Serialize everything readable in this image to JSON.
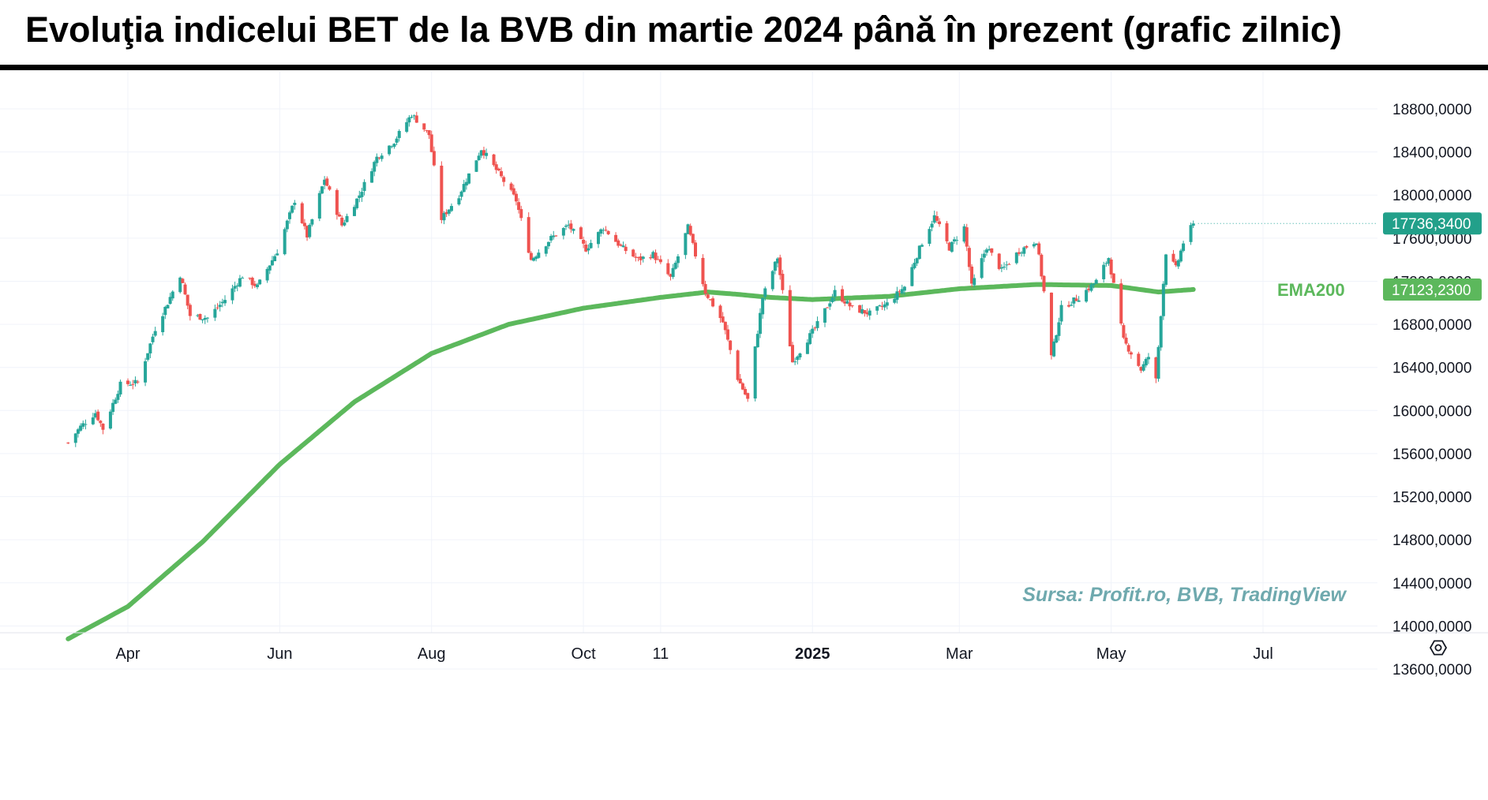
{
  "header": {
    "title": "Evoluţia indicelui BET de la BVB din martie 2024 până în prezent (grafic zilnic)"
  },
  "source": "Sursa: Profit.ro, BVB, TradingView",
  "settings_icon": "settings-gear-icon",
  "colors": {
    "up": "#26a69a",
    "down": "#ef5350",
    "ema": "#5cb85c",
    "grid": "#f0f3fa",
    "source": "#6fa9ae"
  },
  "chart_data": {
    "type": "candlestick",
    "x_axis": {
      "start": "2024-03-08",
      "end": "2025-07-10",
      "ticks": [
        {
          "label": "Apr",
          "date": "2024-04-01"
        },
        {
          "label": "Jun",
          "date": "2024-06-01"
        },
        {
          "label": "Aug",
          "date": "2024-08-01"
        },
        {
          "label": "Oct",
          "date": "2024-10-01"
        },
        {
          "label": "11",
          "date": "2024-11-01"
        },
        {
          "label": "2025",
          "date": "2025-01-01",
          "bold": true
        },
        {
          "label": "Mar",
          "date": "2025-03-01"
        },
        {
          "label": "May",
          "date": "2025-05-01"
        },
        {
          "label": "Jul",
          "date": "2025-07-01"
        }
      ]
    },
    "y_axis": {
      "range": [
        13400,
        19400
      ],
      "ticks": [
        "18800,0000",
        "18400,0000",
        "18000,0000",
        "17600,0000",
        "17200,0000",
        "16800,0000",
        "16400,0000",
        "16000,0000",
        "15600,0000",
        "15200,0000",
        "14800,0000",
        "14400,0000",
        "14000,0000",
        "13600,0000"
      ]
    },
    "last_price": {
      "value": 17736.34,
      "label": "17736,3400"
    },
    "ema": {
      "name": "EMA200",
      "value": 17123.23,
      "label": "17123,2300"
    },
    "price_anchors": [
      [
        "2024-03-08",
        15700
      ],
      [
        "2024-03-13",
        15850
      ],
      [
        "2024-03-19",
        15980
      ],
      [
        "2024-03-22",
        15830
      ],
      [
        "2024-03-29",
        16240
      ],
      [
        "2024-04-05",
        16260
      ],
      [
        "2024-04-12",
        16760
      ],
      [
        "2024-04-17",
        17000
      ],
      [
        "2024-04-22",
        17260
      ],
      [
        "2024-04-26",
        16880
      ],
      [
        "2024-05-03",
        16860
      ],
      [
        "2024-05-10",
        17030
      ],
      [
        "2024-05-17",
        17250
      ],
      [
        "2024-05-23",
        17150
      ],
      [
        "2024-05-31",
        17480
      ],
      [
        "2024-06-07",
        17950
      ],
      [
        "2024-06-12",
        17620
      ],
      [
        "2024-06-19",
        18150
      ],
      [
        "2024-06-26",
        17720
      ],
      [
        "2024-07-03",
        18000
      ],
      [
        "2024-07-10",
        18350
      ],
      [
        "2024-07-17",
        18500
      ],
      [
        "2024-07-24",
        18750
      ],
      [
        "2024-07-31",
        18560
      ],
      [
        "2024-08-05",
        17780
      ],
      [
        "2024-08-12",
        18000
      ],
      [
        "2024-08-21",
        18430
      ],
      [
        "2024-08-28",
        18200
      ],
      [
        "2024-09-04",
        17950
      ],
      [
        "2024-09-10",
        17400
      ],
      [
        "2024-09-18",
        17600
      ],
      [
        "2024-09-25",
        17720
      ],
      [
        "2024-10-02",
        17500
      ],
      [
        "2024-10-09",
        17700
      ],
      [
        "2024-10-16",
        17520
      ],
      [
        "2024-10-23",
        17400
      ],
      [
        "2024-10-29",
        17450
      ],
      [
        "2024-11-05",
        17230
      ],
      [
        "2024-11-12",
        17700
      ],
      [
        "2024-11-19",
        17100
      ],
      [
        "2024-11-26",
        16820
      ],
      [
        "2024-12-02",
        16300
      ],
      [
        "2024-12-06",
        16100
      ],
      [
        "2024-12-12",
        17050
      ],
      [
        "2024-12-18",
        17420
      ],
      [
        "2024-12-24",
        16450
      ],
      [
        "2025-01-03",
        16800
      ],
      [
        "2025-01-10",
        17100
      ],
      [
        "2025-01-17",
        16950
      ],
      [
        "2025-01-24",
        16900
      ],
      [
        "2025-01-31",
        16990
      ],
      [
        "2025-02-07",
        17150
      ],
      [
        "2025-02-14",
        17560
      ],
      [
        "2025-02-19",
        17800
      ],
      [
        "2025-02-25",
        17510
      ],
      [
        "2025-03-03",
        17700
      ],
      [
        "2025-03-06",
        17150
      ],
      [
        "2025-03-12",
        17520
      ],
      [
        "2025-03-18",
        17300
      ],
      [
        "2025-03-25",
        17480
      ],
      [
        "2025-04-01",
        17580
      ],
      [
        "2025-04-04",
        17100
      ],
      [
        "2025-04-07",
        16500
      ],
      [
        "2025-04-11",
        16950
      ],
      [
        "2025-04-18",
        17050
      ],
      [
        "2025-04-25",
        17200
      ],
      [
        "2025-04-30",
        17420
      ],
      [
        "2025-05-06",
        16650
      ],
      [
        "2025-05-13",
        16380
      ],
      [
        "2025-05-16",
        16500
      ],
      [
        "2025-05-19",
        16280
      ],
      [
        "2025-05-21",
        16900
      ],
      [
        "2025-05-23",
        17470
      ],
      [
        "2025-05-27",
        17320
      ],
      [
        "2025-05-30",
        17560
      ],
      [
        "2025-06-03",
        17736.34
      ]
    ],
    "ema_anchors": [
      [
        "2024-03-08",
        13880
      ],
      [
        "2024-04-01",
        14180
      ],
      [
        "2024-05-01",
        14780
      ],
      [
        "2024-06-01",
        15500
      ],
      [
        "2024-07-01",
        16080
      ],
      [
        "2024-08-01",
        16530
      ],
      [
        "2024-09-01",
        16800
      ],
      [
        "2024-10-01",
        16950
      ],
      [
        "2024-11-01",
        17050
      ],
      [
        "2024-11-20",
        17100
      ],
      [
        "2024-12-01",
        17080
      ],
      [
        "2024-12-15",
        17050
      ],
      [
        "2025-01-01",
        17030
      ],
      [
        "2025-02-01",
        17060
      ],
      [
        "2025-03-01",
        17130
      ],
      [
        "2025-04-01",
        17170
      ],
      [
        "2025-05-01",
        17160
      ],
      [
        "2025-05-20",
        17100
      ],
      [
        "2025-06-03",
        17123.23
      ]
    ]
  }
}
